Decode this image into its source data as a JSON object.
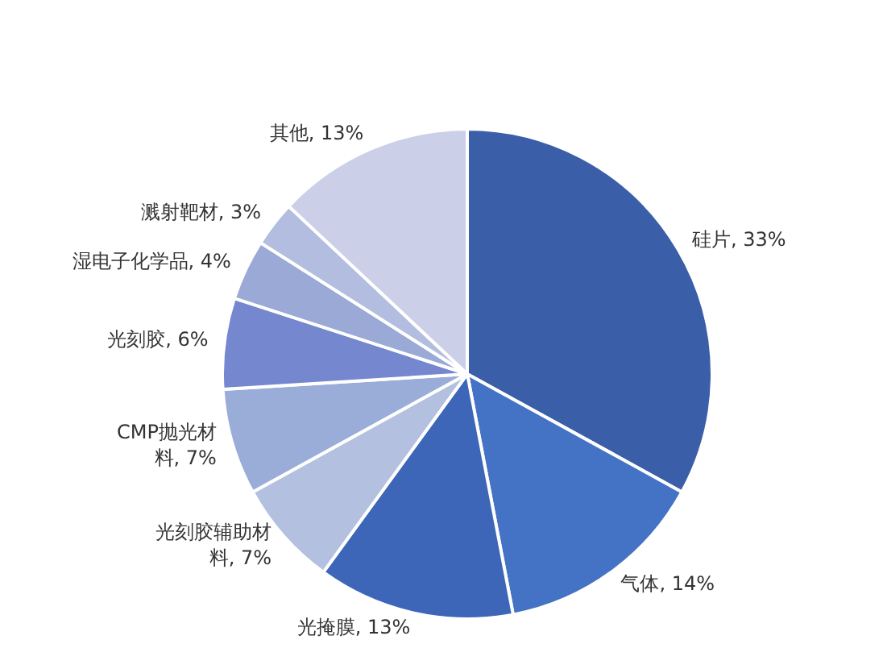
{
  "chart_data": {
    "type": "pie",
    "categories": [
      "硅片",
      "气体",
      "光掩膜",
      "光刻胶辅助材料",
      "CMP抛光材料",
      "光刻胶",
      "湿电子化学品",
      "溅射靶材",
      "其他"
    ],
    "values": [
      33,
      14,
      13,
      7,
      7,
      6,
      4,
      3,
      13
    ],
    "value_labels": [
      "33%",
      "14%",
      "13%",
      "7%",
      "7%",
      "6%",
      "4%",
      "3%",
      "13%"
    ],
    "colors": [
      "#3a5ea8",
      "#4472c4",
      "#3d66b8",
      "#b4c0df",
      "#9aacd8",
      "#7487cf",
      "#9aa9d6",
      "#b3bde0",
      "#cbd0e8"
    ]
  }
}
